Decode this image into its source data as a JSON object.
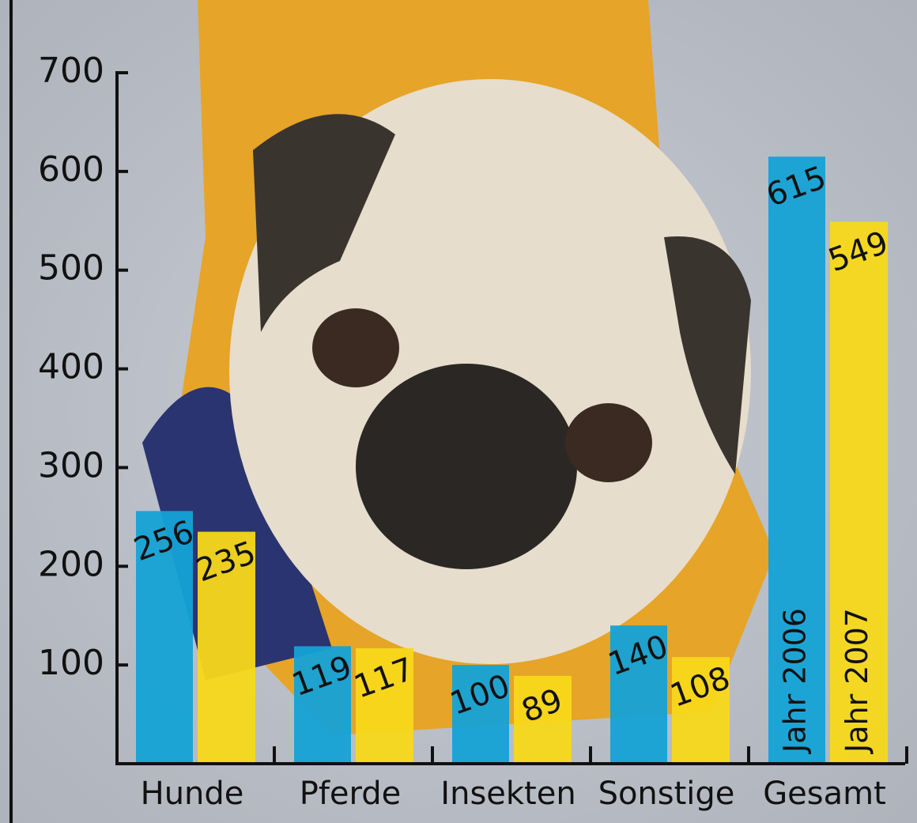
{
  "chart_data": {
    "type": "bar",
    "categories": [
      "Hunde",
      "Pferde",
      "Insekten",
      "Sonstige",
      "Gesamt"
    ],
    "series": [
      {
        "name": "Jahr 2006",
        "color": "#14a2d6",
        "values": [
          256,
          119,
          100,
          140,
          615
        ]
      },
      {
        "name": "Jahr 2007",
        "color": "#f7d81a",
        "values": [
          235,
          117,
          89,
          108,
          549
        ]
      }
    ],
    "ylim": [
      0,
      700
    ],
    "yticks": [
      100,
      200,
      300,
      400,
      500,
      600,
      700
    ],
    "grid": false
  }
}
